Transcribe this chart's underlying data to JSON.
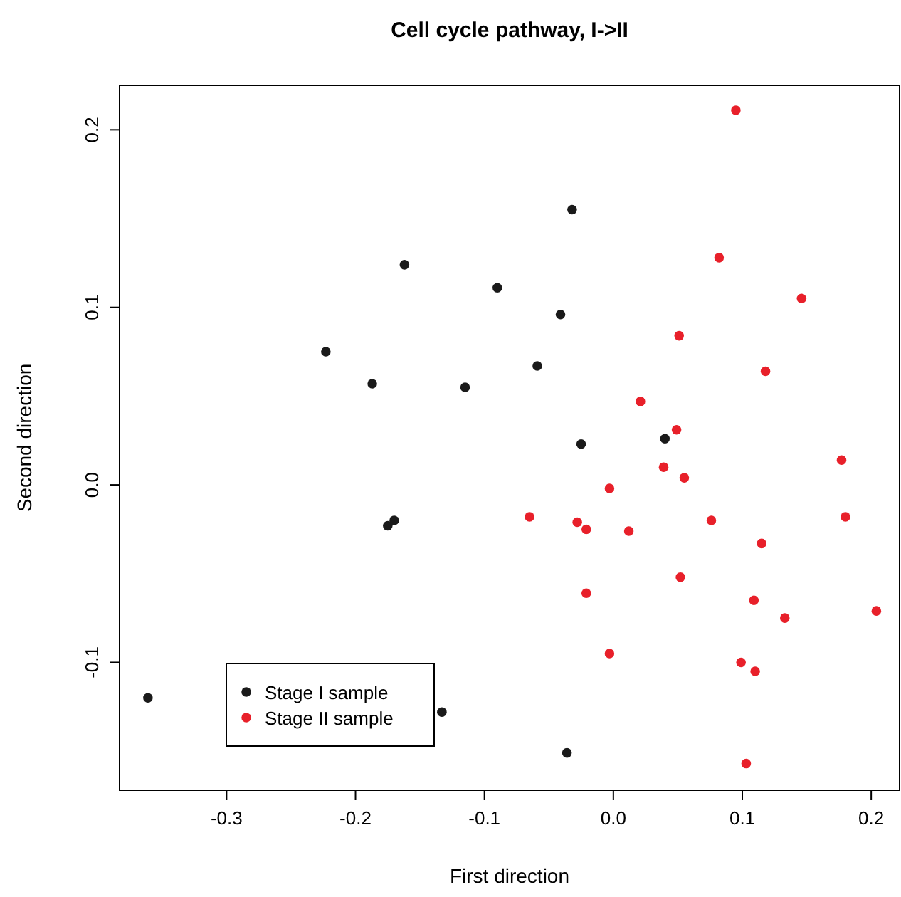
{
  "chart_data": {
    "type": "scatter",
    "title": "Cell cycle pathway, I->II",
    "xlabel": "First direction",
    "ylabel": "Second direction",
    "xlim": [
      -0.383,
      0.222
    ],
    "ylim": [
      -0.172,
      0.225
    ],
    "xticks": [
      -0.3,
      -0.2,
      -0.1,
      {
        "value": 0,
        "label": "0.0"
      },
      0.1,
      0.2
    ],
    "yticks": [
      -0.1,
      {
        "value": 0,
        "label": "0.0"
      },
      0.1,
      0.2
    ],
    "marker": "circle",
    "legend": "bottom left",
    "grid": false,
    "series": [
      {
        "name": "Stage I sample",
        "color": "#1a1a1a",
        "x": [
          -0.361,
          -0.223,
          -0.187,
          -0.162,
          -0.175,
          -0.17,
          -0.133,
          -0.115,
          -0.09,
          -0.059,
          -0.041,
          -0.032,
          -0.025,
          -0.036,
          0.04
        ],
        "values": [
          -0.12,
          0.075,
          0.057,
          0.124,
          -0.023,
          -0.02,
          -0.128,
          0.055,
          0.111,
          0.067,
          0.096,
          0.155,
          0.023,
          -0.151,
          0.026
        ]
      },
      {
        "name": "Stage II sample",
        "color": "#e8202a",
        "x": [
          0.095,
          0.082,
          0.146,
          0.051,
          0.118,
          0.021,
          0.049,
          0.039,
          0.055,
          0.177,
          -0.003,
          -0.065,
          -0.028,
          -0.021,
          0.012,
          0.076,
          0.18,
          0.115,
          -0.021,
          0.052,
          0.109,
          0.133,
          0.204,
          -0.003,
          0.099,
          0.11,
          0.103
        ],
        "values": [
          0.211,
          0.128,
          0.105,
          0.084,
          0.064,
          0.047,
          0.031,
          0.01,
          0.004,
          0.014,
          -0.002,
          -0.018,
          -0.021,
          -0.025,
          -0.026,
          -0.02,
          -0.018,
          -0.033,
          -0.061,
          -0.052,
          -0.065,
          -0.075,
          -0.071,
          -0.095,
          -0.1,
          -0.105,
          -0.157
        ]
      }
    ]
  }
}
